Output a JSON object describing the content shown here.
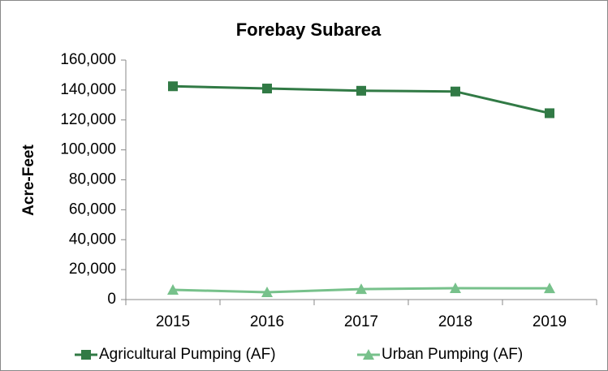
{
  "chart_data": {
    "type": "line",
    "title": "Forebay Subarea",
    "y_label": "Acre-Feet",
    "categories": [
      "2015",
      "2016",
      "2017",
      "2018",
      "2019"
    ],
    "series": [
      {
        "name": "Agricultural Pumping (AF)",
        "color": "#317a45",
        "marker": "square",
        "values": [
          142500,
          141000,
          139500,
          139000,
          124500
        ]
      },
      {
        "name": "Urban Pumping (AF)",
        "color": "#77c18b",
        "marker": "triangle",
        "values": [
          6500,
          4900,
          7000,
          7600,
          7500
        ]
      }
    ],
    "ylim": [
      0,
      160000
    ],
    "yticks": [
      0,
      {
        "value": 20000,
        "label": "20,000"
      },
      {
        "value": 40000,
        "label": "40,000"
      },
      {
        "value": 60000,
        "label": "60,000"
      },
      {
        "value": 80000,
        "label": "80,000"
      },
      {
        "value": 100000,
        "label": "100,000"
      },
      {
        "value": 120000,
        "label": "120,000"
      },
      {
        "value": 140000,
        "label": "140,000"
      },
      {
        "value": 160000,
        "label": "160,000"
      }
    ],
    "grid": false,
    "legend": "bottom"
  }
}
